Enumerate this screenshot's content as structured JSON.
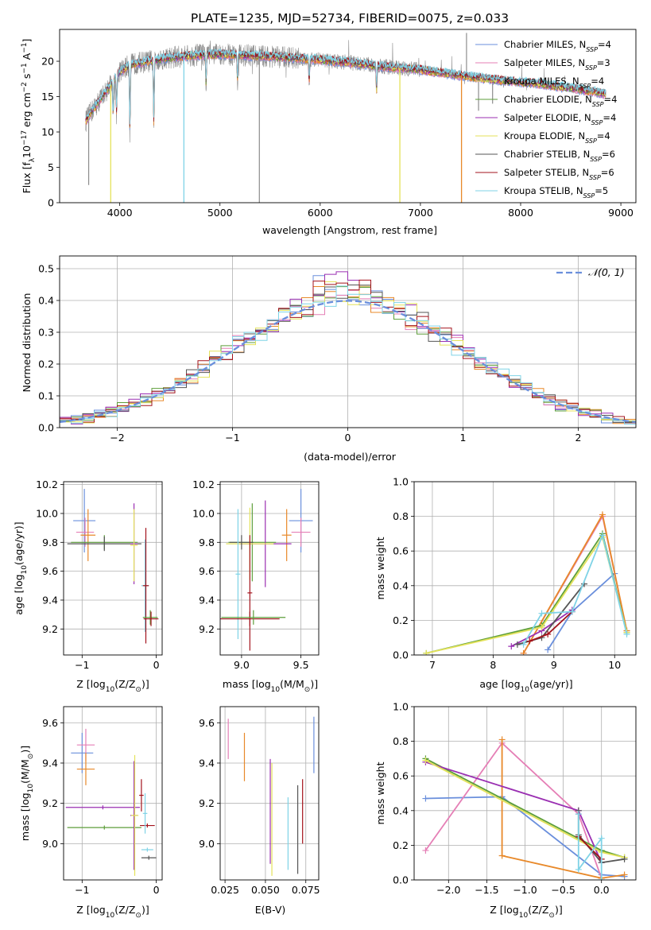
{
  "title": "PLATE=1235, MJD=52734, FIBERID=0075, z=0.033",
  "colors": {
    "c0": "#6a8fdc",
    "c1": "#e57fb6",
    "c2": "#e8892a",
    "c3": "#5d9e3a",
    "c4": "#9a2fb2",
    "c5": "#e4e25a",
    "c6": "#555555",
    "c7": "#a3131c",
    "c8": "#7fd3e6",
    "gray": "#8c8c8c"
  },
  "legend": [
    {
      "label": "Chabrier MILES, N",
      "sub": "SSP",
      "tail": "=4",
      "color": "c0"
    },
    {
      "label": "Salpeter MILES, N",
      "sub": "SSP",
      "tail": "=3",
      "color": "c1"
    },
    {
      "label": "Kroupa MILES, N",
      "sub": "SSP",
      "tail": "=4",
      "color": "c5"
    },
    {
      "label": "Chabrier ELODIE, N",
      "sub": "SSP",
      "tail": "=4",
      "color": "c3"
    },
    {
      "label": "Salpeter ELODIE, N",
      "sub": "SSP",
      "tail": "=4",
      "color": "c4"
    },
    {
      "label": "Kroupa ELODIE, N",
      "sub": "SSP",
      "tail": "=4",
      "color": "c5"
    },
    {
      "label": "Chabrier STELIB, N",
      "sub": "SSP",
      "tail": "=6",
      "color": "c6"
    },
    {
      "label": "Salpeter STELIB, N",
      "sub": "SSP",
      "tail": "=6",
      "color": "c7"
    },
    {
      "label": "Kroupa STELIB, N",
      "sub": "SSP",
      "tail": "=5",
      "color": "c8"
    }
  ],
  "chart_data": [
    {
      "id": "spectrum",
      "type": "line",
      "xlabel": "wavelength [Angstrom, rest frame]",
      "ylabel_parts": [
        "Flux [f",
        "λ",
        "10",
        "−17",
        " erg cm",
        "−2",
        " s",
        "−1",
        " A",
        "−1",
        "]"
      ],
      "xlim": [
        3400,
        9150
      ],
      "ylim": [
        0,
        24.5
      ],
      "xticks": [
        4000,
        5000,
        6000,
        7000,
        8000,
        9000
      ],
      "yticks": [
        0,
        5,
        10,
        15,
        20
      ],
      "grid": false,
      "legend_placement": "right",
      "continuum": {
        "x": [
          3660,
          3700,
          3800,
          3900,
          4000,
          4100,
          4200,
          4300,
          4400,
          4500,
          4700,
          5000,
          5300,
          5600,
          6000,
          6300,
          6600,
          7000,
          7400,
          7800,
          8200,
          8600,
          8850
        ],
        "y": [
          11.5,
          12.5,
          14.5,
          16.5,
          18.5,
          19.5,
          19.8,
          20.0,
          20.3,
          20.5,
          20.8,
          21.0,
          20.8,
          20.6,
          20.2,
          19.8,
          19.3,
          18.8,
          18.0,
          17.3,
          16.8,
          16.0,
          15.4
        ]
      },
      "absorption": [
        {
          "x": 3934,
          "y": 12.0
        },
        {
          "x": 3968,
          "y": 12.5
        },
        {
          "x": 4101,
          "y": 9.8
        },
        {
          "x": 4340,
          "y": 10.5
        },
        {
          "x": 4861,
          "y": 16.5
        },
        {
          "x": 5175,
          "y": 17.2
        },
        {
          "x": 5890,
          "y": 16.8
        },
        {
          "x": 6563,
          "y": 15.5
        }
      ],
      "model_dips": [
        {
          "x": 3910,
          "y": 0,
          "color": "c5"
        },
        {
          "x": 4640,
          "y": 0,
          "color": "c8"
        },
        {
          "x": 6795,
          "y": 0,
          "color": "c5"
        },
        {
          "x": 7410,
          "y": 0,
          "color": "c2"
        }
      ],
      "data_spikes": [
        {
          "x": 5393,
          "y": 0
        },
        {
          "x": 7460,
          "y": 24
        },
        {
          "x": 7580,
          "y": 13
        },
        {
          "x": 3690,
          "y": 2.5
        },
        {
          "x": 7720,
          "y": 14
        }
      ]
    },
    {
      "id": "residuals",
      "type": "histogram",
      "xlabel": "(data-model)/error",
      "ylabel": "Normed distribution",
      "xlim": [
        -2.5,
        2.5
      ],
      "ylim": [
        0,
        0.54
      ],
      "xticks": [
        -2,
        -1,
        0,
        1,
        2
      ],
      "yticks": [
        0,
        0.1,
        0.2,
        0.3,
        0.4,
        0.5
      ],
      "grid": true,
      "bin_width": 0.1,
      "legend": "𝒩(0, 1)",
      "legend_placement": "top-right",
      "normal": {
        "mu": 0,
        "sigma": 1
      }
    },
    {
      "id": "age_vs_Z",
      "type": "scatter",
      "xlabel": "Z [log",
      "xlabel_parts": [
        "Z [log",
        "10",
        "(Z/Z",
        "⊙",
        ")]"
      ],
      "ylabel_parts": [
        "age  [log",
        "10",
        "(age/yr)]"
      ],
      "xlim": [
        -1.25,
        0.08
      ],
      "ylim": [
        9.02,
        10.22
      ],
      "xticks": [
        -1,
        0
      ],
      "yticks": [
        9.2,
        9.4,
        9.6,
        9.8,
        10.0,
        10.2
      ],
      "grid": true,
      "points": [
        {
          "x": -0.97,
          "y": 9.95,
          "xerr": 0.15,
          "yerr": 0.22,
          "color": "c0"
        },
        {
          "x": -0.96,
          "y": 9.87,
          "xerr": 0.12,
          "yerr": 0.1,
          "color": "c1"
        },
        {
          "x": -0.92,
          "y": 9.85,
          "xerr": 0.1,
          "yerr": 0.18,
          "color": "c2"
        },
        {
          "x": -0.7,
          "y": 9.8,
          "xerr": 0.45,
          "yerr": 0.05,
          "color": "c3"
        },
        {
          "x": -0.7,
          "y": 9.79,
          "xerr": 0.5,
          "yerr": 0.05,
          "color": "c6"
        },
        {
          "x": -0.3,
          "y": 9.79,
          "xerr": 0.05,
          "yerr": 0.28,
          "color": "c4"
        },
        {
          "x": -0.3,
          "y": 9.78,
          "xerr": 0.05,
          "yerr": 0.25,
          "color": "c5"
        },
        {
          "x": -0.15,
          "y": 9.5,
          "xerr": 0.05,
          "yerr": 0.32,
          "color": "c8"
        },
        {
          "x": -0.14,
          "y": 9.5,
          "xerr": 0.04,
          "yerr": 0.4,
          "color": "c7"
        },
        {
          "x": -0.08,
          "y": 9.28,
          "xerr": 0.1,
          "yerr": 0.05,
          "color": "c3"
        },
        {
          "x": -0.07,
          "y": 9.27,
          "xerr": 0.1,
          "yerr": 0.05,
          "color": "c7"
        }
      ]
    },
    {
      "id": "age_vs_mass",
      "type": "scatter",
      "xlabel_parts": [
        "mass [log",
        "10",
        "(M/M",
        "⊙",
        ")]"
      ],
      "xlim": [
        8.82,
        9.65
      ],
      "ylim": [
        9.02,
        10.22
      ],
      "xticks": [
        9.0,
        9.5
      ],
      "yticks": [
        9.2,
        9.4,
        9.6,
        9.8,
        10.0,
        10.2
      ],
      "grid": true,
      "points": [
        {
          "x": 9.5,
          "y": 9.95,
          "xerr": 0.1,
          "yerr": 0.22,
          "color": "c0"
        },
        {
          "x": 9.5,
          "y": 9.87,
          "xerr": 0.08,
          "yerr": 0.1,
          "color": "c1"
        },
        {
          "x": 9.38,
          "y": 9.85,
          "xerr": 0.04,
          "yerr": 0.18,
          "color": "c2"
        },
        {
          "x": 9.09,
          "y": 9.8,
          "xerr": 0.2,
          "yerr": 0.27,
          "color": "c3"
        },
        {
          "x": 9.2,
          "y": 9.79,
          "xerr": 0.22,
          "yerr": 0.3,
          "color": "c4"
        },
        {
          "x": 9.07,
          "y": 9.79,
          "xerr": 0.2,
          "yerr": 0.25,
          "color": "c5"
        },
        {
          "x": 9.0,
          "y": 9.8,
          "xerr": 0.1,
          "yerr": 0.05,
          "color": "c6"
        },
        {
          "x": 8.97,
          "y": 9.58,
          "xerr": 0.02,
          "yerr": 0.45,
          "color": "c8"
        },
        {
          "x": 9.07,
          "y": 9.45,
          "xerr": 0.02,
          "yerr": 0.4,
          "color": "c7"
        },
        {
          "x": 9.07,
          "y": 9.27,
          "xerr": 0.25,
          "yerr": 0.05,
          "color": "c7"
        },
        {
          "x": 9.1,
          "y": 9.28,
          "xerr": 0.27,
          "yerr": 0.05,
          "color": "c3"
        }
      ]
    },
    {
      "id": "weight_vs_age",
      "type": "line",
      "xlabel_parts": [
        "age  [log",
        "10",
        "(age/yr)]"
      ],
      "ylabel": "mass weight",
      "xlim": [
        6.7,
        10.35
      ],
      "ylim": [
        0,
        1.0
      ],
      "xticks": [
        7,
        8,
        9,
        10
      ],
      "yticks": [
        0,
        0.2,
        0.4,
        0.6,
        0.8,
        1.0
      ],
      "grid": true,
      "series": [
        {
          "color": "c0",
          "x": [
            8.9,
            9.3,
            10.0
          ],
          "y": [
            0.03,
            0.25,
            0.47
          ]
        },
        {
          "color": "c1",
          "x": [
            8.5,
            9.8,
            10.2
          ],
          "y": [
            0.01,
            0.8,
            0.14
          ]
        },
        {
          "color": "c2",
          "x": [
            8.5,
            9.8,
            10.2
          ],
          "y": [
            0.01,
            0.81,
            0.14
          ]
        },
        {
          "color": "c3",
          "x": [
            6.9,
            8.8,
            9.8,
            10.2
          ],
          "y": [
            0.01,
            0.17,
            0.7,
            0.13
          ]
        },
        {
          "color": "c4",
          "x": [
            8.3,
            8.8,
            9.3
          ],
          "y": [
            0.05,
            0.14,
            0.26
          ]
        },
        {
          "color": "c5",
          "x": [
            6.9,
            8.8,
            9.8,
            10.2
          ],
          "y": [
            0.01,
            0.16,
            0.68,
            0.13
          ]
        },
        {
          "color": "c6",
          "x": [
            8.4,
            8.8,
            9.5
          ],
          "y": [
            0.06,
            0.1,
            0.41
          ]
        },
        {
          "color": "c7",
          "x": [
            8.6,
            8.9,
            9.3
          ],
          "y": [
            0.08,
            0.12,
            0.25
          ]
        },
        {
          "color": "c8",
          "x": [
            8.5,
            8.8,
            9.3,
            9.8,
            10.2
          ],
          "y": [
            0.06,
            0.24,
            0.25,
            0.69,
            0.12
          ]
        }
      ]
    },
    {
      "id": "mass_vs_Z",
      "type": "scatter",
      "xlabel_parts": [
        "Z [log",
        "10",
        "(Z/Z",
        "⊙",
        ")]"
      ],
      "ylabel_parts": [
        "mass [log",
        "10",
        "(M/M",
        "⊙",
        ")]"
      ],
      "xlim": [
        -1.25,
        0.08
      ],
      "ylim": [
        8.82,
        9.68
      ],
      "xticks": [
        -1,
        0
      ],
      "yticks": [
        9.0,
        9.2,
        9.4,
        9.6
      ],
      "grid": true,
      "points": [
        {
          "x": -1.0,
          "y": 9.45,
          "xerr": 0.15,
          "yerr": 0.1,
          "color": "c0"
        },
        {
          "x": -0.95,
          "y": 9.49,
          "xerr": 0.12,
          "yerr": 0.08,
          "color": "c1"
        },
        {
          "x": -0.95,
          "y": 9.37,
          "xerr": 0.12,
          "yerr": 0.08,
          "color": "c2"
        },
        {
          "x": -0.72,
          "y": 9.18,
          "xerr": 0.5,
          "yerr": 0.01,
          "color": "c4"
        },
        {
          "x": -0.7,
          "y": 9.08,
          "xerr": 0.5,
          "yerr": 0.01,
          "color": "c3"
        },
        {
          "x": -0.3,
          "y": 9.14,
          "xerr": 0.05,
          "yerr": 0.27,
          "color": "c4"
        },
        {
          "x": -0.29,
          "y": 9.14,
          "xerr": 0.05,
          "yerr": 0.3,
          "color": "c5"
        },
        {
          "x": -0.2,
          "y": 9.24,
          "xerr": 0.03,
          "yerr": 0.08,
          "color": "c7"
        },
        {
          "x": -0.12,
          "y": 9.09,
          "xerr": 0.1,
          "yerr": 0.01,
          "color": "c7"
        },
        {
          "x": -0.15,
          "y": 9.15,
          "xerr": 0.03,
          "yerr": 0.1,
          "color": "c8"
        },
        {
          "x": -0.12,
          "y": 8.97,
          "xerr": 0.08,
          "yerr": 0.01,
          "color": "c8"
        },
        {
          "x": -0.1,
          "y": 8.93,
          "xerr": 0.1,
          "yerr": 0.01,
          "color": "c6"
        }
      ]
    },
    {
      "id": "mass_vs_ebv",
      "type": "scatter",
      "xlabel": "E(B-V)",
      "xlim": [
        0.022,
        0.083
      ],
      "ylim": [
        8.82,
        9.68
      ],
      "xticks": [
        0.025,
        0.05,
        0.075
      ],
      "yticks": [
        9.0,
        9.2,
        9.4,
        9.6
      ],
      "grid": true,
      "points": [
        {
          "x": 0.027,
          "y": 9.52,
          "yerr": 0.1,
          "color": "c1"
        },
        {
          "x": 0.037,
          "y": 9.43,
          "yerr": 0.12,
          "color": "c2"
        },
        {
          "x": 0.053,
          "y": 9.16,
          "yerr": 0.26,
          "color": "c4"
        },
        {
          "x": 0.054,
          "y": 9.12,
          "yerr": 0.28,
          "color": "c5"
        },
        {
          "x": 0.064,
          "y": 9.05,
          "yerr": 0.18,
          "color": "c8"
        },
        {
          "x": 0.07,
          "y": 9.07,
          "yerr": 0.22,
          "color": "c6"
        },
        {
          "x": 0.073,
          "y": 9.16,
          "yerr": 0.16,
          "color": "c7"
        },
        {
          "x": 0.08,
          "y": 9.49,
          "yerr": 0.14,
          "color": "c0"
        }
      ]
    },
    {
      "id": "weight_vs_Z",
      "type": "line",
      "xlabel_parts": [
        "Z [log",
        "10",
        "(Z/Z",
        "⊙",
        ")]"
      ],
      "ylabel": "mass weight",
      "xlim": [
        -2.45,
        0.45
      ],
      "ylim": [
        0,
        1.0
      ],
      "xticks": [
        -2.0,
        -1.5,
        -1.0,
        -0.5,
        0.0
      ],
      "yticks": [
        0,
        0.2,
        0.4,
        0.6,
        0.8,
        1.0
      ],
      "grid": true,
      "series": [
        {
          "color": "c0",
          "x": [
            -2.3,
            -1.3,
            0.0,
            0.3
          ],
          "y": [
            0.47,
            0.48,
            0.03,
            0.02
          ]
        },
        {
          "color": "c1",
          "x": [
            -2.3,
            -1.3,
            -0.3,
            0.0
          ],
          "y": [
            0.17,
            0.79,
            0.38,
            0.01
          ]
        },
        {
          "color": "c2",
          "x": [
            -1.3,
            -1.3,
            0.0,
            0.3
          ],
          "y": [
            0.81,
            0.14,
            0.01,
            0.03
          ]
        },
        {
          "color": "c3",
          "x": [
            -2.3,
            0.0,
            0.3
          ],
          "y": [
            0.7,
            0.17,
            0.13
          ]
        },
        {
          "color": "c4",
          "x": [
            -2.3,
            -0.3,
            0.0
          ],
          "y": [
            0.68,
            0.4,
            0.1
          ]
        },
        {
          "color": "c5",
          "x": [
            -2.3,
            0.0,
            0.3
          ],
          "y": [
            0.69,
            0.16,
            0.13
          ]
        },
        {
          "color": "c6",
          "x": [
            -0.3,
            -0.3,
            0.0,
            0.3
          ],
          "y": [
            0.4,
            0.26,
            0.1,
            0.12
          ]
        },
        {
          "color": "c7",
          "x": [
            -0.3,
            0.0
          ],
          "y": [
            0.25,
            0.12
          ]
        },
        {
          "color": "c8",
          "x": [
            -0.3,
            -0.3,
            0.0,
            0.0
          ],
          "y": [
            0.38,
            0.06,
            0.24,
            0.0
          ]
        }
      ]
    }
  ]
}
